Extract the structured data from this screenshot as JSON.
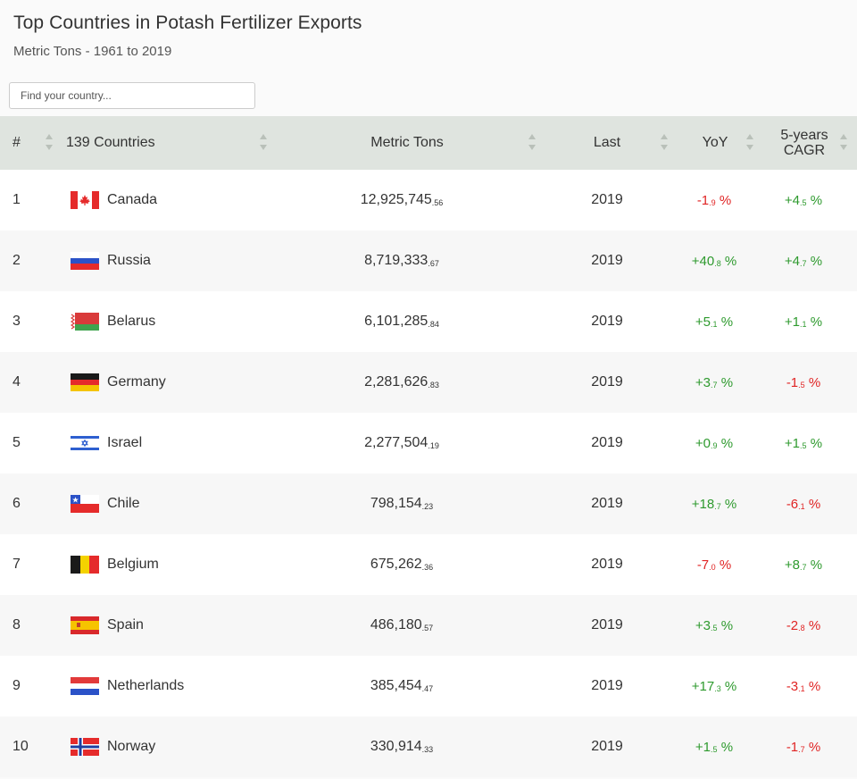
{
  "header": {
    "title": "Top Countries in Potash Fertilizer Exports",
    "subtitle": "Metric Tons - 1961 to 2019"
  },
  "search": {
    "placeholder": "Find your country..."
  },
  "columns": {
    "rank": "#",
    "country": "139 Countries",
    "value": "Metric Tons",
    "last": "Last",
    "yoy": "YoY",
    "cagr_line1": "5-years",
    "cagr_line2": "CAGR"
  },
  "colors": {
    "positive": "#2e9a2e",
    "negative": "#e02424",
    "header_bg": "#dfe4df"
  },
  "rows": [
    {
      "rank": "1",
      "country": "Canada",
      "flag": "flag-canada-icon",
      "value_int": "12,925,745",
      "value_dec": ".56",
      "last": "2019",
      "yoy_int": "-1",
      "yoy_dec": ".9",
      "yoy_unit": " %",
      "yoy_sign": "neg",
      "cagr_int": "+4",
      "cagr_dec": ".5",
      "cagr_unit": " %",
      "cagr_sign": "pos"
    },
    {
      "rank": "2",
      "country": "Russia",
      "flag": "flag-russia-icon",
      "value_int": "8,719,333",
      "value_dec": ".67",
      "last": "2019",
      "yoy_int": "+40",
      "yoy_dec": ".8",
      "yoy_unit": " %",
      "yoy_sign": "pos",
      "cagr_int": "+4",
      "cagr_dec": ".7",
      "cagr_unit": " %",
      "cagr_sign": "pos"
    },
    {
      "rank": "3",
      "country": "Belarus",
      "flag": "flag-belarus-icon",
      "value_int": "6,101,285",
      "value_dec": ".84",
      "last": "2019",
      "yoy_int": "+5",
      "yoy_dec": ".1",
      "yoy_unit": " %",
      "yoy_sign": "pos",
      "cagr_int": "+1",
      "cagr_dec": ".1",
      "cagr_unit": " %",
      "cagr_sign": "pos"
    },
    {
      "rank": "4",
      "country": "Germany",
      "flag": "flag-germany-icon",
      "value_int": "2,281,626",
      "value_dec": ".83",
      "last": "2019",
      "yoy_int": "+3",
      "yoy_dec": ".7",
      "yoy_unit": " %",
      "yoy_sign": "pos",
      "cagr_int": "-1",
      "cagr_dec": ".5",
      "cagr_unit": " %",
      "cagr_sign": "neg"
    },
    {
      "rank": "5",
      "country": "Israel",
      "flag": "flag-israel-icon",
      "value_int": "2,277,504",
      "value_dec": ".19",
      "last": "2019",
      "yoy_int": "+0",
      "yoy_dec": ".9",
      "yoy_unit": " %",
      "yoy_sign": "pos",
      "cagr_int": "+1",
      "cagr_dec": ".5",
      "cagr_unit": " %",
      "cagr_sign": "pos"
    },
    {
      "rank": "6",
      "country": "Chile",
      "flag": "flag-chile-icon",
      "value_int": "798,154",
      "value_dec": ".23",
      "last": "2019",
      "yoy_int": "+18",
      "yoy_dec": ".7",
      "yoy_unit": " %",
      "yoy_sign": "pos",
      "cagr_int": "-6",
      "cagr_dec": ".1",
      "cagr_unit": " %",
      "cagr_sign": "neg"
    },
    {
      "rank": "7",
      "country": "Belgium",
      "flag": "flag-belgium-icon",
      "value_int": "675,262",
      "value_dec": ".36",
      "last": "2019",
      "yoy_int": "-7",
      "yoy_dec": ".0",
      "yoy_unit": " %",
      "yoy_sign": "neg",
      "cagr_int": "+8",
      "cagr_dec": ".7",
      "cagr_unit": " %",
      "cagr_sign": "pos"
    },
    {
      "rank": "8",
      "country": "Spain",
      "flag": "flag-spain-icon",
      "value_int": "486,180",
      "value_dec": ".57",
      "last": "2019",
      "yoy_int": "+3",
      "yoy_dec": ".5",
      "yoy_unit": " %",
      "yoy_sign": "pos",
      "cagr_int": "-2",
      "cagr_dec": ".8",
      "cagr_unit": " %",
      "cagr_sign": "neg"
    },
    {
      "rank": "9",
      "country": "Netherlands",
      "flag": "flag-netherlands-icon",
      "value_int": "385,454",
      "value_dec": ".47",
      "last": "2019",
      "yoy_int": "+17",
      "yoy_dec": ".3",
      "yoy_unit": " %",
      "yoy_sign": "pos",
      "cagr_int": "-3",
      "cagr_dec": ".1",
      "cagr_unit": " %",
      "cagr_sign": "neg"
    },
    {
      "rank": "10",
      "country": "Norway",
      "flag": "flag-norway-icon",
      "value_int": "330,914",
      "value_dec": ".33",
      "last": "2019",
      "yoy_int": "+1",
      "yoy_dec": ".5",
      "yoy_unit": " %",
      "yoy_sign": "pos",
      "cagr_int": "-1",
      "cagr_dec": ".7",
      "cagr_unit": " %",
      "cagr_sign": "neg"
    }
  ]
}
